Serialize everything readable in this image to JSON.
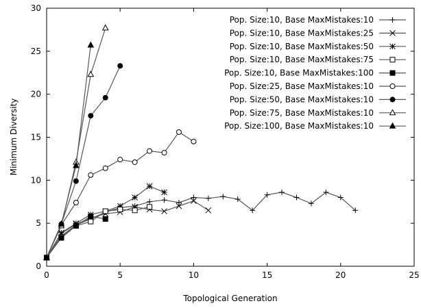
{
  "chart_data": {
    "type": "line",
    "title": "",
    "xlabel": "Topological Generation",
    "ylabel": "Minimum Diversity",
    "xlim": [
      0,
      25
    ],
    "ylim": [
      0,
      30
    ],
    "x_ticks": [
      0,
      5,
      10,
      15,
      20,
      25
    ],
    "y_ticks": [
      0,
      5,
      10,
      15,
      20,
      25,
      30
    ],
    "grid": false,
    "legend_position": "top-right",
    "line_color": "#555555",
    "marker_color": "#000000",
    "series": [
      {
        "name": "Pop. Size:10, Base MaxMistakes:10",
        "marker": "plus",
        "x": [
          0,
          1,
          2,
          3,
          4,
          5,
          6,
          7,
          8,
          9,
          10,
          11,
          12,
          13,
          14,
          15,
          16,
          17,
          18,
          19,
          20,
          21
        ],
        "y": [
          1,
          3.5,
          4.8,
          5.5,
          6.3,
          6.8,
          7.0,
          7.5,
          7.7,
          7.4,
          8.0,
          7.9,
          8.1,
          7.8,
          6.5,
          8.3,
          8.6,
          8.0,
          7.3,
          8.6,
          8.0,
          6.5
        ]
      },
      {
        "name": "Pop. Size:10, Base MaxMistakes:25",
        "marker": "x",
        "x": [
          0,
          1,
          2,
          3,
          4,
          5,
          6,
          7,
          8,
          9,
          10,
          11
        ],
        "y": [
          1,
          3.8,
          4.9,
          5.6,
          6.1,
          6.3,
          6.9,
          6.6,
          6.4,
          7.0,
          7.6,
          6.5
        ]
      },
      {
        "name": "Pop. Size:10, Base MaxMistakes:50",
        "marker": "star",
        "x": [
          0,
          1,
          2,
          3,
          4,
          5,
          6,
          7,
          8
        ],
        "y": [
          1,
          3.9,
          5.0,
          6.0,
          6.4,
          7.0,
          8.0,
          9.3,
          8.6
        ]
      },
      {
        "name": "Pop. Size:10, Base MaxMistakes:75",
        "marker": "square-open",
        "x": [
          0,
          1,
          2,
          3,
          4,
          5,
          6,
          7
        ],
        "y": [
          1,
          3.4,
          4.7,
          5.2,
          6.4,
          6.6,
          6.5,
          6.9
        ]
      },
      {
        "name": "Pop. Size:10, Base MaxMistakes:100",
        "marker": "square-filled",
        "x": [
          0,
          1,
          2,
          3,
          4
        ],
        "y": [
          1,
          3.3,
          4.7,
          5.8,
          5.5
        ]
      },
      {
        "name": "Pop. Size:25, Base MaxMistakes:10",
        "marker": "circle-open",
        "x": [
          0,
          1,
          2,
          3,
          4,
          5,
          6,
          7,
          8,
          9,
          10
        ],
        "y": [
          1,
          4.8,
          7.4,
          10.6,
          11.4,
          12.4,
          12.1,
          13.4,
          13.2,
          15.6,
          14.5
        ]
      },
      {
        "name": "Pop. Size:50, Base MaxMistakes:10",
        "marker": "circle-filled",
        "x": [
          0,
          1,
          2,
          3,
          4,
          5
        ],
        "y": [
          1,
          4.9,
          9.9,
          17.5,
          19.6,
          23.3
        ]
      },
      {
        "name": "Pop. Size:75, Base MaxMistakes:10",
        "marker": "triangle-open",
        "x": [
          0,
          1,
          2,
          3,
          4
        ],
        "y": [
          1,
          4.7,
          12.1,
          22.3,
          27.7
        ]
      },
      {
        "name": "Pop. Size:100, Base MaxMistakes:10",
        "marker": "triangle-filled",
        "x": [
          0,
          1,
          2,
          3
        ],
        "y": [
          1,
          4.9,
          11.7,
          25.7
        ]
      }
    ]
  }
}
